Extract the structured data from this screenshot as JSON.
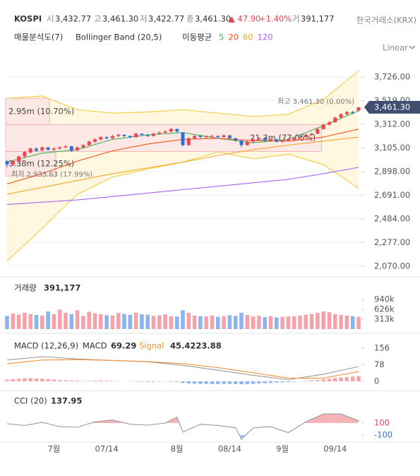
{
  "header": {
    "symbol": "KOSPI",
    "open_label": "시",
    "open": "3,432.77",
    "high_label": "고",
    "high": "3,461.30",
    "low_label": "저",
    "low": "3,422.77",
    "close_label": "종",
    "close": "3,461.30",
    "change": "▲ 47.90",
    "change_pct": "+1.40%",
    "volume_label": "거",
    "volume": "391,177",
    "exchange": "한국거래소(KRX)"
  },
  "indicators": {
    "profile": "매물분석도(7)",
    "bollinger": "Bollinger Band (20,5)",
    "ma_label": "이동평균",
    "ma": [
      "5",
      "20",
      "60",
      "120"
    ],
    "ma_colors": [
      "#4caf50",
      "#f4511e",
      "#f6a623",
      "#a463f2"
    ]
  },
  "scale_mode": "Linear",
  "chart_data": [
    {
      "type": "candlestick",
      "categories": [
        null,
        null,
        null,
        null,
        null,
        null,
        null,
        null,
        "7월",
        null,
        null,
        null,
        null,
        null,
        null,
        null,
        null,
        "07/14",
        null,
        null,
        null,
        null,
        null,
        null,
        null,
        null,
        null,
        null,
        null,
        "8월",
        null,
        null,
        null,
        null,
        null,
        null,
        null,
        null,
        "08/14",
        null,
        null,
        null,
        null,
        null,
        null,
        null,
        null,
        "9월",
        null,
        null,
        null,
        null,
        null,
        null,
        null,
        null,
        "09/14",
        null,
        null,
        null,
        null
      ],
      "open": [
        2990,
        2960,
        2985,
        3030,
        3065,
        3100,
        3085,
        3110,
        3090,
        3100,
        3110,
        3120,
        3085,
        3110,
        3130,
        3160,
        3180,
        3200,
        3190,
        3210,
        3220,
        3210,
        3200,
        3230,
        3220,
        3210,
        3230,
        3240,
        3250,
        3270,
        3240,
        3130,
        3190,
        3210,
        3200,
        3205,
        3210,
        3200,
        3215,
        3190,
        3170,
        3130,
        3160,
        3180,
        3190,
        3170,
        3180,
        3160,
        3170,
        3180,
        3190,
        3200,
        3220,
        3230,
        3270,
        3310,
        3330,
        3370,
        3400,
        3420,
        3432.77
      ],
      "high": [
        2995,
        3000,
        3040,
        3080,
        3110,
        3110,
        3120,
        3115,
        3110,
        3120,
        3130,
        3125,
        3120,
        3140,
        3170,
        3190,
        3210,
        3210,
        3220,
        3230,
        3225,
        3215,
        3240,
        3235,
        3225,
        3240,
        3250,
        3260,
        3280,
        3275,
        3245,
        3200,
        3220,
        3215,
        3215,
        3220,
        3215,
        3225,
        3220,
        3195,
        3175,
        3170,
        3190,
        3200,
        3195,
        3190,
        3185,
        3180,
        3190,
        3200,
        3210,
        3230,
        3240,
        3280,
        3320,
        3340,
        3380,
        3410,
        3430,
        3430,
        3461.3
      ],
      "low": [
        2933.63,
        2950,
        2980,
        3020,
        3055,
        3070,
        3075,
        3080,
        3080,
        3090,
        3100,
        3070,
        3075,
        3100,
        3125,
        3150,
        3170,
        3180,
        3185,
        3200,
        3200,
        3190,
        3195,
        3210,
        3200,
        3205,
        3220,
        3235,
        3240,
        3235,
        3120,
        3125,
        3180,
        3190,
        3190,
        3195,
        3190,
        3195,
        3180,
        3160,
        3110,
        3125,
        3150,
        3170,
        3160,
        3160,
        3150,
        3150,
        3160,
        3170,
        3180,
        3195,
        3210,
        3225,
        3265,
        3300,
        3325,
        3360,
        3390,
        3400,
        3422.77
      ],
      "close": [
        2960,
        2990,
        3030,
        3070,
        3100,
        3080,
        3110,
        3090,
        3100,
        3110,
        3120,
        3080,
        3110,
        3130,
        3160,
        3180,
        3200,
        3190,
        3210,
        3220,
        3210,
        3200,
        3230,
        3220,
        3210,
        3230,
        3240,
        3250,
        3270,
        3250,
        3130,
        3190,
        3210,
        3200,
        3205,
        3210,
        3200,
        3215,
        3190,
        3170,
        3130,
        3160,
        3180,
        3190,
        3170,
        3180,
        3160,
        3170,
        3180,
        3190,
        3200,
        3220,
        3230,
        3270,
        3310,
        3330,
        3370,
        3400,
        3420,
        3410,
        3461.3
      ],
      "up_color": "#e8454f",
      "down_color": "#2f6fd8",
      "ylim": [
        2020,
        3813
      ],
      "yticks": [
        {
          "value": 3726,
          "label": "3,726.00"
        },
        {
          "value": 3519,
          "label": "3,519.00"
        },
        {
          "value": 3312,
          "label": "3,312.00"
        },
        {
          "value": 3105,
          "label": "3,105.00"
        },
        {
          "value": 2898,
          "label": "2,898.00"
        },
        {
          "value": 2691,
          "label": "2,691.00"
        },
        {
          "value": 2484,
          "label": "2,484.00"
        },
        {
          "value": 2277,
          "label": "2,277.00"
        },
        {
          "value": 2070,
          "label": "2,070.00"
        }
      ],
      "grid": true,
      "bollinger": {
        "color": "#f3cf4e",
        "fill": "#fff7df",
        "x": [
          0,
          6,
          12,
          18,
          24,
          30,
          36,
          42,
          48,
          54,
          60
        ],
        "upper": [
          3540,
          3560,
          3440,
          3410,
          3420,
          3440,
          3410,
          3380,
          3400,
          3530,
          3780
        ],
        "lower": [
          2116,
          2400,
          2700,
          2850,
          2920,
          2980,
          3070,
          3010,
          3050,
          2960,
          2750
        ]
      },
      "moving_averages": [
        {
          "color": "#4caf50",
          "x": [
            0,
            6,
            12,
            18,
            24,
            30,
            36,
            42,
            48,
            54,
            60
          ],
          "values": [
            2980,
            3060,
            3090,
            3180,
            3220,
            3240,
            3190,
            3150,
            3180,
            3300,
            3430
          ]
        },
        {
          "color": "#f4511e",
          "x": [
            0,
            6,
            12,
            18,
            24,
            30,
            36,
            42,
            48,
            54,
            60
          ],
          "values": [
            2790,
            2880,
            2990,
            3080,
            3140,
            3180,
            3190,
            3170,
            3165,
            3200,
            3270
          ]
        },
        {
          "color": "#f6a623",
          "x": [
            0,
            6,
            12,
            18,
            24,
            30,
            36,
            42,
            48,
            54,
            60
          ],
          "values": [
            2700,
            2760,
            2820,
            2880,
            2930,
            2980,
            3040,
            3090,
            3130,
            3165,
            3200
          ]
        },
        {
          "color": "#a463f2",
          "x": [
            0,
            6,
            12,
            18,
            24,
            30,
            36,
            42,
            48,
            54,
            60
          ],
          "values": [
            2610,
            2630,
            2650,
            2680,
            2710,
            2740,
            2770,
            2800,
            2830,
            2880,
            2935
          ]
        }
      ],
      "volume_profile": {
        "bins": [
          2860,
          3075,
          3310,
          3540
        ],
        "values": [
          3.38,
          21.3,
          2.95
        ],
        "value_labels": [
          "3.38m (12.25%)",
          "21.3m (77.05%)",
          "2.95m (10.70%)"
        ],
        "xlim": [
          0,
          24
        ],
        "color": "#fbe3e6",
        "edge_color": "#f0a8b0"
      },
      "annotations": {
        "high": "최고 3,461.30 (0.00%)",
        "low": "최저 2,933.63 (17.99%)",
        "last": "3,461.30"
      },
      "last_color": "#3f4d6e"
    },
    {
      "type": "bar",
      "title": "거래량",
      "value_label": "391,177",
      "values": [
        420000,
        500000,
        460000,
        520000,
        480000,
        450000,
        430000,
        560000,
        470000,
        620000,
        520000,
        480000,
        600000,
        420000,
        550000,
        500000,
        470000,
        440000,
        430000,
        510000,
        480000,
        450000,
        520000,
        470000,
        460000,
        420000,
        440000,
        470000,
        410000,
        400000,
        600000,
        520000,
        430000,
        410000,
        400000,
        430000,
        390000,
        410000,
        440000,
        420000,
        520000,
        450000,
        400000,
        420000,
        380000,
        410000,
        370000,
        390000,
        400000,
        410000,
        430000,
        460000,
        480000,
        520000,
        560000,
        540000,
        470000,
        450000,
        430000,
        410000,
        391177
      ],
      "up_color": "#f5a3ab",
      "down_color": "#8cb4ee",
      "ylim": [
        0,
        1480000
      ],
      "yticks": [
        {
          "value": 313000,
          "label": "313k"
        },
        {
          "value": 626000,
          "label": "626k"
        },
        {
          "value": 940000,
          "label": "940k"
        }
      ]
    },
    {
      "type": "line",
      "title": "MACD (12,26,9)",
      "macd_label": "MACD",
      "macd_value": "69.29",
      "signal_label": "Signal",
      "signal_value": "45.4223.88",
      "ylim": [
        -27,
        189
      ],
      "yticks": [
        0,
        78,
        156
      ],
      "series": [
        {
          "color": "#9a9a9a",
          "x": [
            0,
            6,
            12,
            18,
            24,
            30,
            36,
            42,
            48,
            54,
            60
          ],
          "values": [
            100,
            116,
            105,
            98,
            92,
            75,
            52,
            28,
            8,
            33,
            69.29
          ]
        },
        {
          "color": "#f0923a",
          "x": [
            0,
            6,
            12,
            18,
            24,
            30,
            36,
            42,
            48,
            54,
            60
          ],
          "values": [
            83,
            100,
            102,
            98,
            93,
            83,
            64,
            40,
            15,
            15,
            45.42
          ]
        }
      ],
      "histogram": {
        "values": [
          8,
          10,
          12,
          14,
          15,
          13,
          12,
          10,
          8,
          6,
          5,
          4,
          3,
          2,
          2,
          3,
          4,
          3,
          2,
          1,
          0,
          -1,
          -2,
          -2,
          -3,
          -3,
          -2,
          -1,
          -2,
          -3,
          -8,
          -10,
          -11,
          -12,
          -12,
          -13,
          -13,
          -12,
          -12,
          -13,
          -14,
          -13,
          -12,
          -10,
          -9,
          -8,
          -6,
          -5,
          -4,
          -2,
          -1,
          2,
          4,
          6,
          9,
          12,
          15,
          18,
          20,
          22,
          23.88
        ],
        "up_color": "#f5a3ab",
        "down_color": "#8cb4ee"
      }
    },
    {
      "type": "line",
      "title": "CCI (20)",
      "value_label": "137.95",
      "ylim": [
        -241,
        535
      ],
      "yticks": [
        100,
        -100
      ],
      "tick_colors": [
        "#e8454f",
        "#2f6fd8"
      ],
      "fill_colors": [
        "#f6b3b8",
        "#a9c6f2"
      ],
      "series": [
        {
          "color": "#9a9a9a",
          "x": [
            0,
            3,
            6,
            9,
            12,
            15,
            18,
            21,
            24,
            27,
            29,
            30,
            33,
            36,
            39,
            40,
            42,
            45,
            48,
            51,
            54,
            57,
            60
          ],
          "values": [
            88,
            60,
            110,
            40,
            30,
            120,
            150,
            80,
            65,
            100,
            200,
            -50,
            80,
            60,
            20,
            -170,
            20,
            40,
            -60,
            120,
            250,
            250,
            137.95
          ]
        }
      ]
    }
  ]
}
